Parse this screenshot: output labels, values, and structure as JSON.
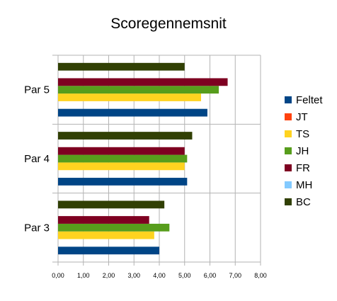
{
  "chart_data": {
    "type": "bar",
    "orientation": "horizontal",
    "title": "Scoregennemsnit",
    "categories": [
      "Par 3",
      "Par 4",
      "Par 5"
    ],
    "series": [
      {
        "name": "Feltet",
        "color": "#004586",
        "values": [
          4.0,
          5.1,
          5.9
        ]
      },
      {
        "name": "JT",
        "color": "#ff420e",
        "values": [
          null,
          null,
          null
        ]
      },
      {
        "name": "TS",
        "color": "#ffd320",
        "values": [
          3.8,
          5.0,
          5.65
        ]
      },
      {
        "name": "JH",
        "color": "#579d1c",
        "values": [
          4.4,
          5.1,
          6.35
        ]
      },
      {
        "name": "FR",
        "color": "#7e0021",
        "values": [
          3.6,
          5.0,
          6.7
        ]
      },
      {
        "name": "MH",
        "color": "#83caff",
        "values": [
          null,
          null,
          null
        ]
      },
      {
        "name": "BC",
        "color": "#314004",
        "values": [
          4.2,
          5.3,
          5.0
        ]
      }
    ],
    "xlim": [
      0,
      8
    ],
    "x_ticks": [
      "0,00",
      "1,00",
      "2,00",
      "3,00",
      "4,00",
      "5,00",
      "6,00",
      "7,00",
      "8,00"
    ],
    "grid": true,
    "legend_position": "right"
  }
}
